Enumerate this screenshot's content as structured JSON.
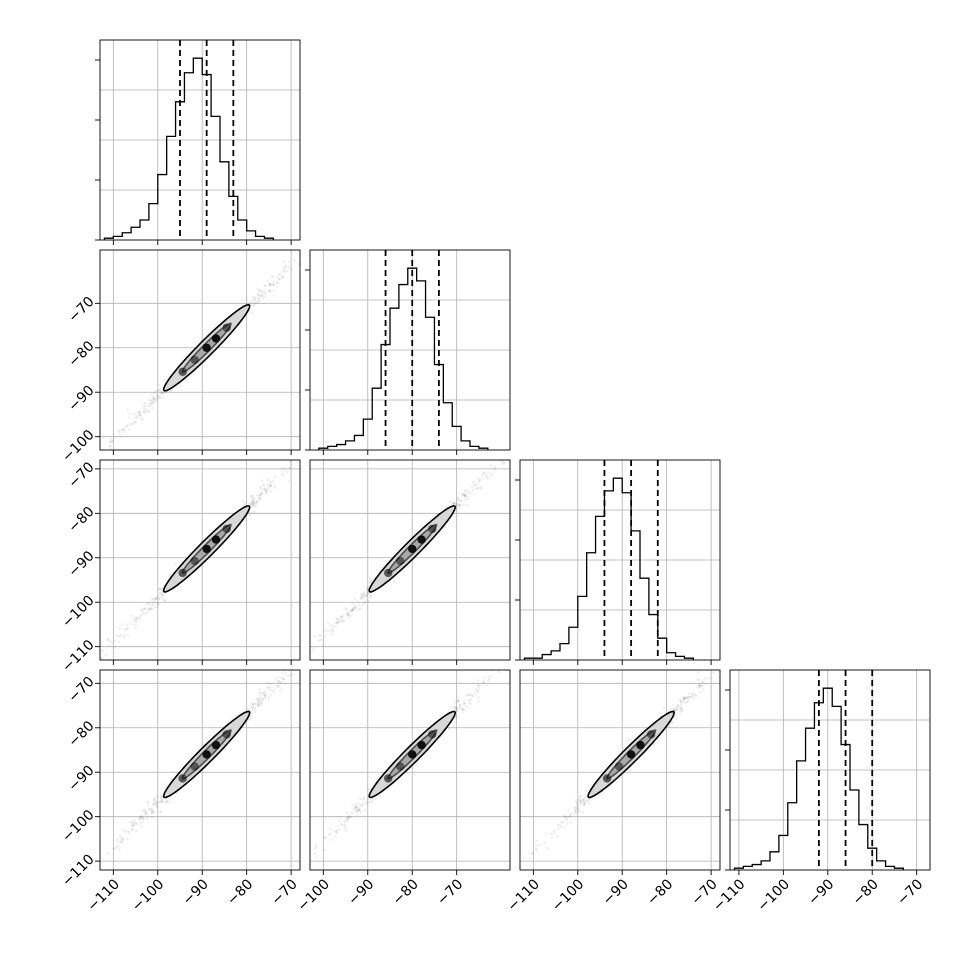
{
  "chart_data": {
    "type": "corner",
    "n_parameters": 4,
    "grid": true,
    "axis_labels": [
      "",
      "",
      "",
      ""
    ],
    "quantile_lines": "dashed",
    "parameters": [
      {
        "range": [
          -113,
          -68
        ],
        "x_ticks": [
          -110,
          -100,
          -90,
          -80,
          -70
        ],
        "x_tick_labels": [
          "−110",
          "−100",
          "−90",
          "−80",
          "−70"
        ],
        "quantiles": [
          -95,
          -89,
          -83
        ],
        "histogram": {
          "bin_start": -112,
          "bin_width": 2,
          "counts": [
            1,
            2,
            4,
            7,
            11,
            20,
            36,
            57,
            76,
            92,
            100,
            91,
            68,
            43,
            24,
            11,
            5,
            2,
            1
          ]
        }
      },
      {
        "range": [
          -103,
          -58
        ],
        "y_ticks": [
          -100,
          -90,
          -80,
          -70
        ],
        "y_tick_labels": [
          "−100",
          "−90",
          "−80",
          "−70"
        ],
        "x_ticks": [
          -100,
          -90,
          -80,
          -70
        ],
        "x_tick_labels": [
          "−100",
          "−90",
          "−80",
          "−70"
        ],
        "quantiles": [
          -86,
          -80,
          -74
        ],
        "histogram": {
          "bin_start": -101,
          "bin_width": 2,
          "counts": [
            1,
            2,
            3,
            5,
            8,
            17,
            34,
            58,
            78,
            91,
            100,
            93,
            73,
            47,
            26,
            13,
            5,
            2,
            1
          ]
        }
      },
      {
        "range": [
          -113,
          -68
        ],
        "y_ticks": [
          -110,
          -100,
          -90,
          -80,
          -70
        ],
        "y_tick_labels": [
          "−110",
          "−100",
          "−90",
          "−80",
          "−70"
        ],
        "x_ticks": [
          -110,
          -100,
          -90,
          -80,
          -70
        ],
        "x_tick_labels": [
          "−110",
          "−100",
          "−90",
          "−80",
          "−70"
        ],
        "quantiles": [
          -94,
          -88,
          -82
        ],
        "histogram": {
          "bin_start": -112,
          "bin_width": 2,
          "counts": [
            1,
            1,
            3,
            5,
            9,
            18,
            35,
            59,
            79,
            93,
            100,
            92,
            71,
            45,
            25,
            12,
            4,
            2,
            1
          ]
        }
      },
      {
        "range": [
          -112,
          -67
        ],
        "y_ticks": [
          -110,
          -100,
          -90,
          -80,
          -70
        ],
        "y_tick_labels": [
          "−110",
          "−100",
          "−90",
          "−80",
          "−70"
        ],
        "x_ticks": [
          -110,
          -100,
          -90,
          -80,
          -70
        ],
        "x_tick_labels": [
          "−110",
          "−100",
          "−90",
          "−80",
          "−70"
        ],
        "quantiles": [
          -92,
          -86,
          -80
        ],
        "histogram": {
          "bin_start": -111,
          "bin_width": 2,
          "counts": [
            1,
            2,
            3,
            5,
            10,
            19,
            37,
            60,
            78,
            92,
            100,
            90,
            69,
            44,
            25,
            12,
            5,
            2,
            1
          ]
        }
      }
    ]
  }
}
